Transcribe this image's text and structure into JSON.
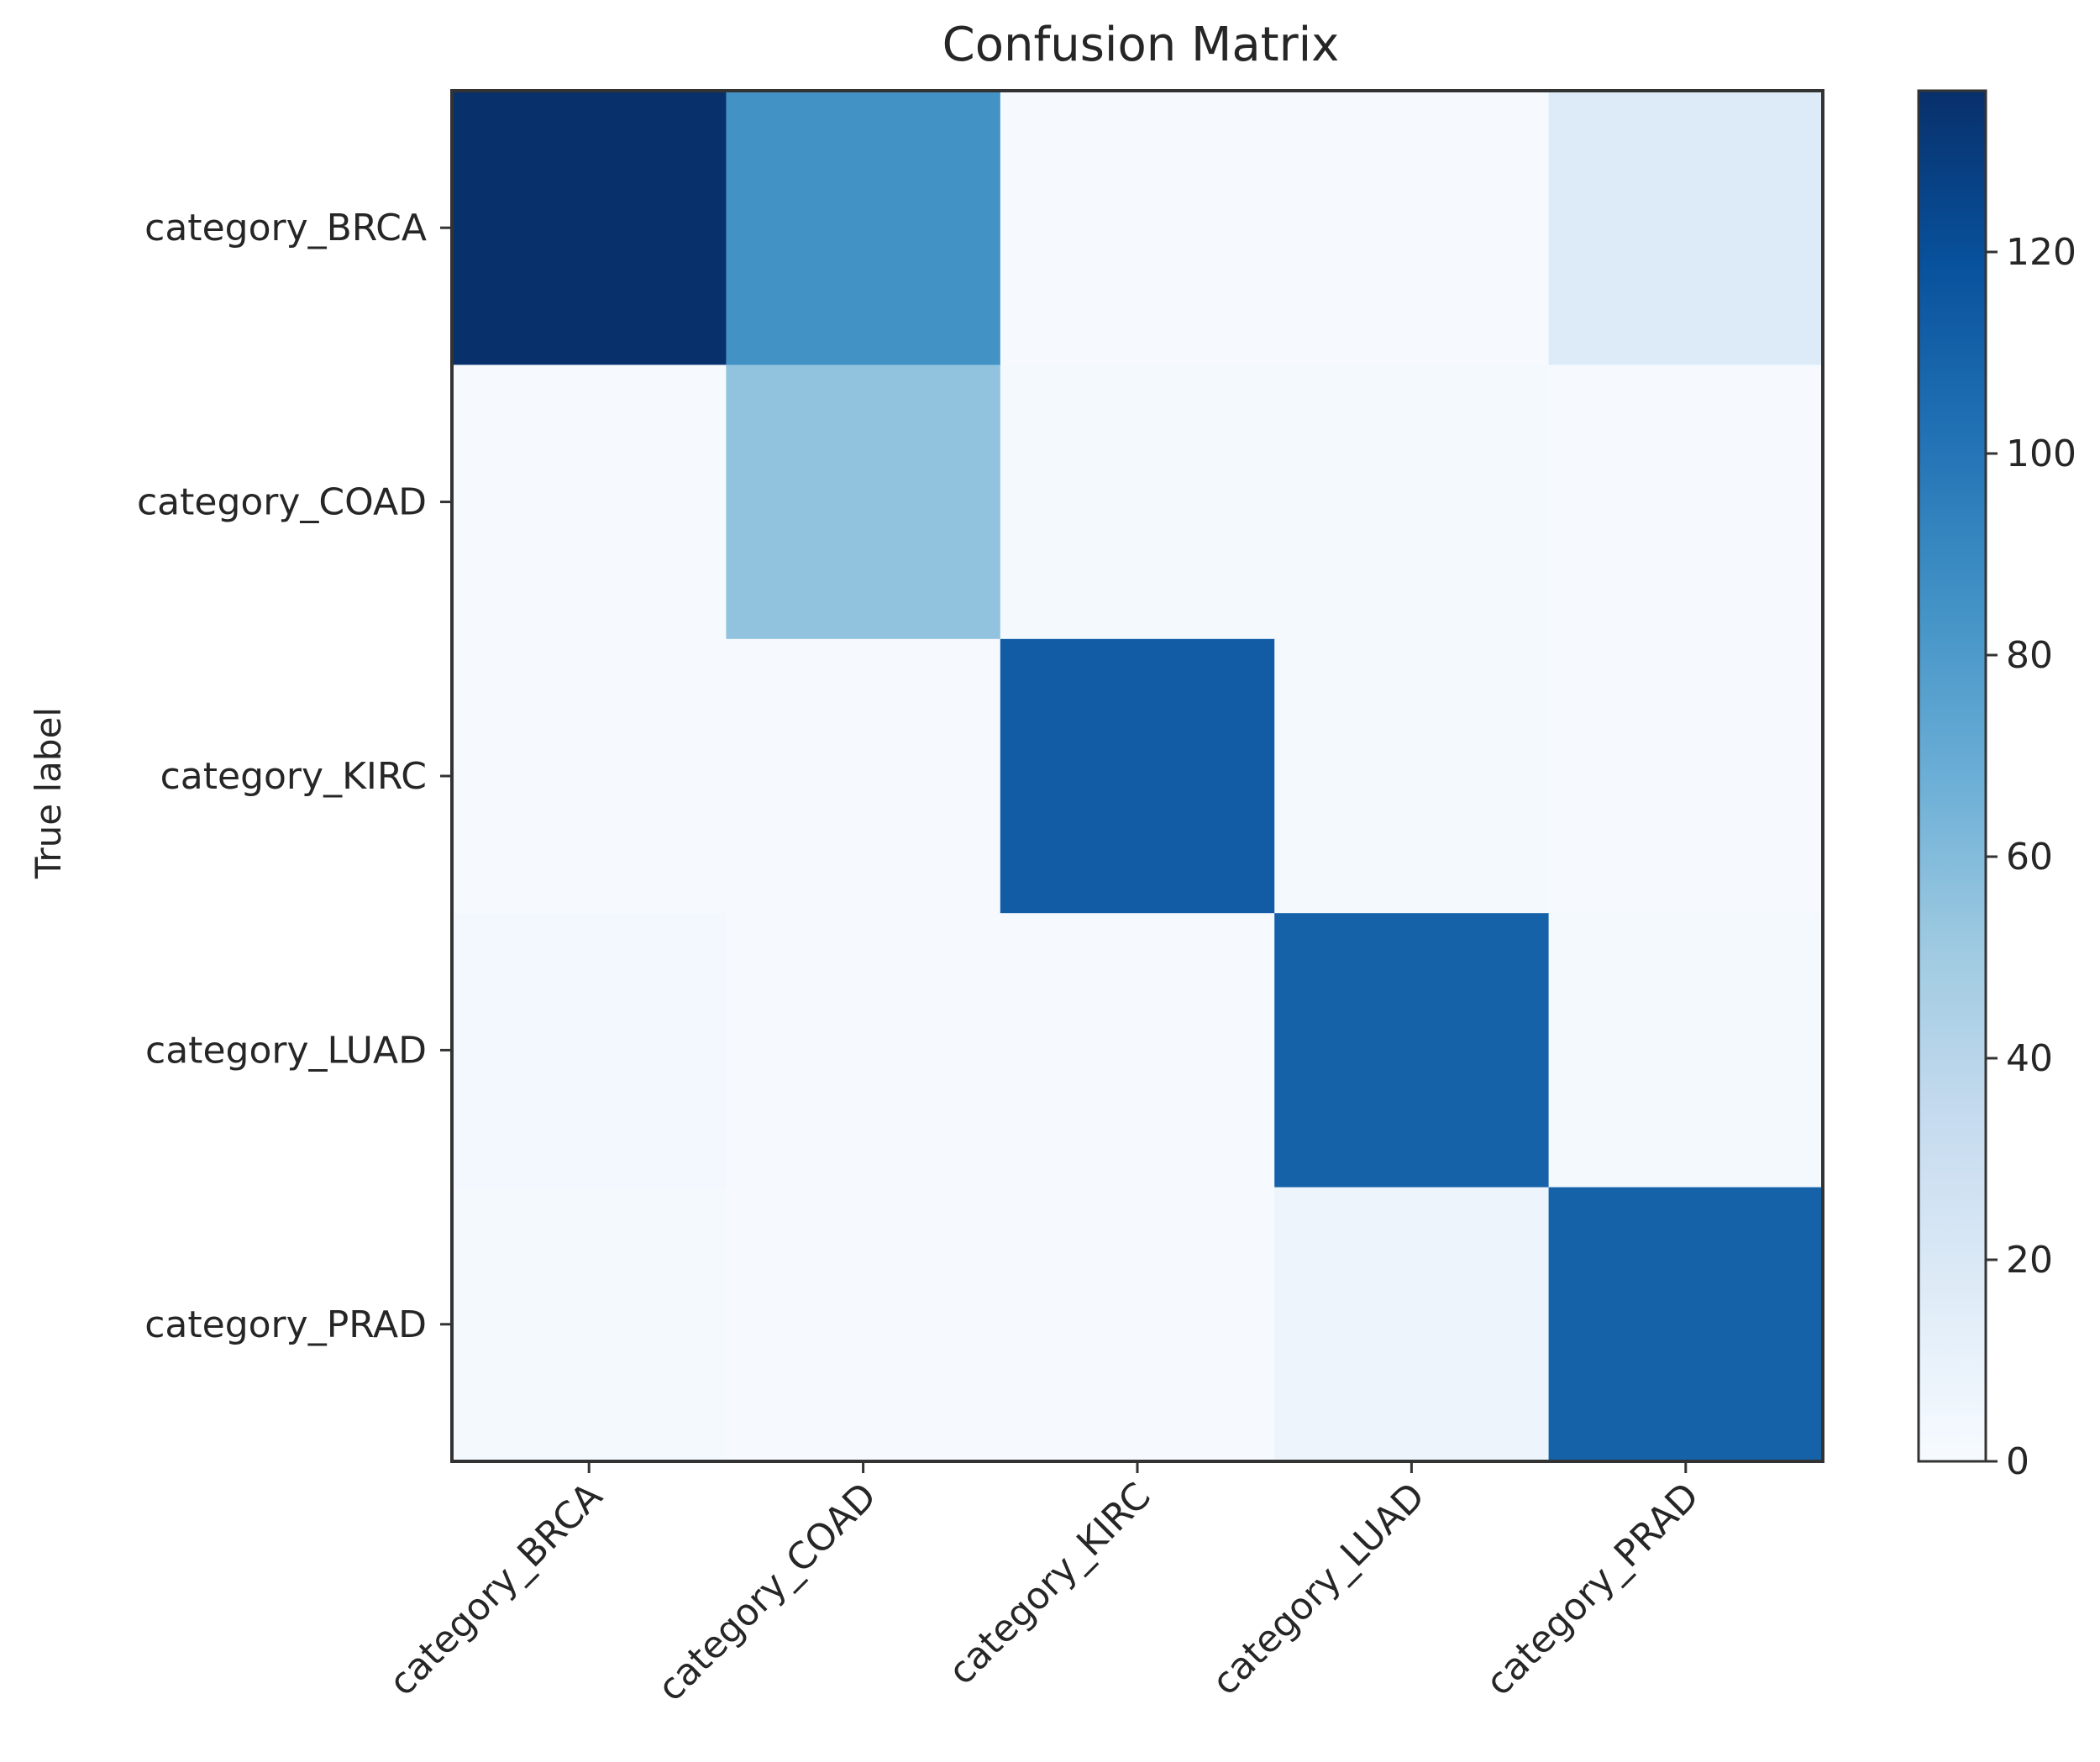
{
  "chart_data": {
    "type": "heatmap",
    "title": "Confusion Matrix",
    "xlabel": "",
    "ylabel": "True label",
    "row_labels": [
      "category_BRCA",
      "category_COAD",
      "category_KIRC",
      "category_LUAD",
      "category_PRAD"
    ],
    "col_labels": [
      "category_BRCA",
      "category_COAD",
      "category_KIRC",
      "category_LUAD",
      "category_PRAD"
    ],
    "values": [
      [
        136,
        85,
        1,
        1,
        18
      ],
      [
        1,
        55,
        2,
        2,
        1
      ],
      [
        1,
        1,
        113,
        2,
        1
      ],
      [
        3,
        1,
        1,
        110,
        2
      ],
      [
        2,
        1,
        1,
        7,
        110
      ]
    ],
    "colorbar": {
      "min": 0,
      "max": 136,
      "ticks": [
        0,
        20,
        40,
        60,
        80,
        100,
        120
      ],
      "colormap": "Blues"
    },
    "grid": false
  }
}
